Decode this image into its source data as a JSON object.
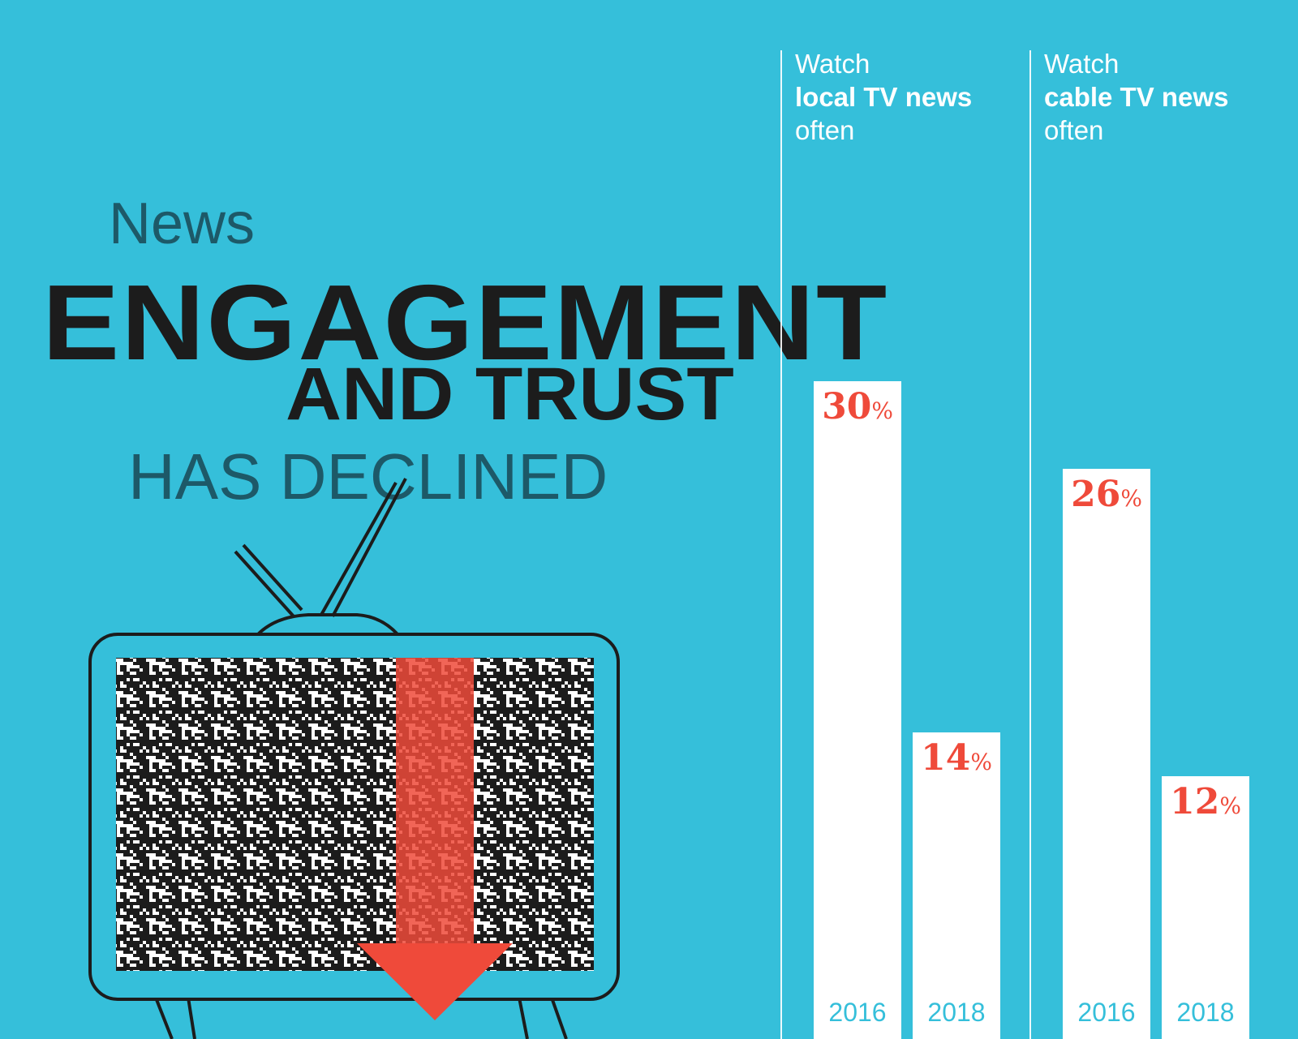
{
  "title": {
    "line1": "News",
    "line2": "ENGAGEMENT",
    "line3": "AND TRUST",
    "line4": "HAS DECLINED"
  },
  "colors": {
    "background": "#35bfda",
    "bar": "#ffffff",
    "value_label": "#ef4a3a",
    "year_label": "#35bfda",
    "title_dark": "#1c1c1c",
    "title_teal": "#1d5968",
    "arrow": "#ef4a3a"
  },
  "icons": [
    "tv-icon",
    "static-noise",
    "down-arrow-icon"
  ],
  "chart_data": [
    {
      "type": "bar",
      "title_prefix": "Watch",
      "title_bold": "local TV news",
      "title_suffix": "often",
      "categories": [
        "2016",
        "2018"
      ],
      "values": [
        30,
        14
      ],
      "value_labels": [
        "30",
        "14"
      ],
      "unit": "%",
      "ylim": [
        0,
        47
      ]
    },
    {
      "type": "bar",
      "title_prefix": "Watch",
      "title_bold": "cable TV news",
      "title_suffix": "often",
      "categories": [
        "2016",
        "2018"
      ],
      "values": [
        26,
        12
      ],
      "value_labels": [
        "26",
        "12"
      ],
      "unit": "%",
      "ylim": [
        0,
        47
      ]
    }
  ]
}
